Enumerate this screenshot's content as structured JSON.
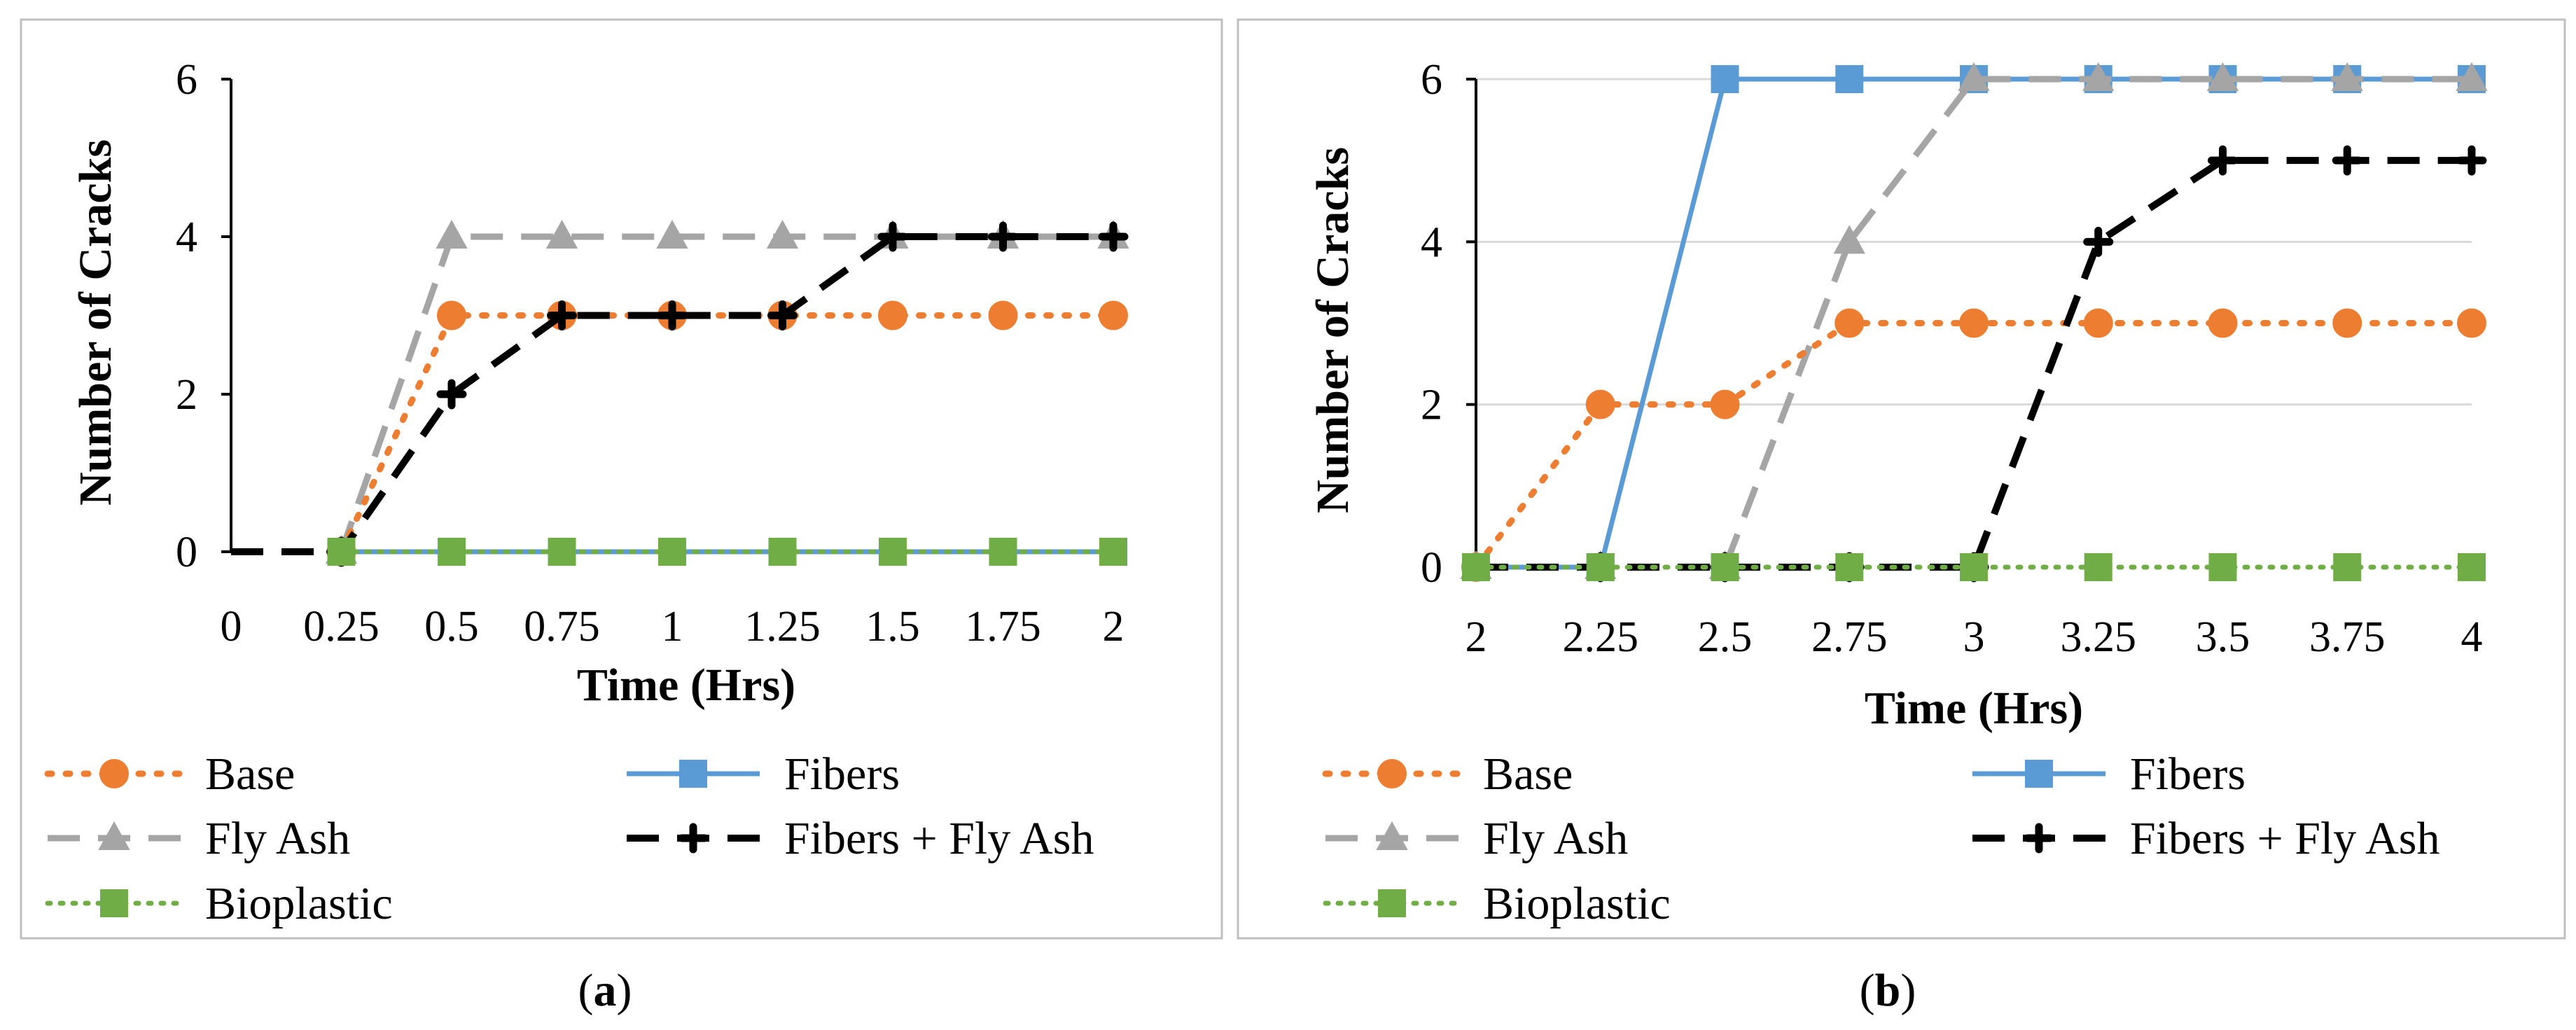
{
  "chart_data": [
    {
      "type": "line",
      "caption": "a",
      "xlabel": "Time (Hrs)",
      "ylabel": "Number of Cracks",
      "x_categories": [
        "0",
        "0.25",
        "0.5",
        "0.75",
        "1",
        "1.25",
        "1.5",
        "1.75",
        "2"
      ],
      "y_ticks": [
        "0",
        "2",
        "4",
        "6"
      ],
      "ylim": [
        0,
        6
      ],
      "y_gridlines": false,
      "y_axis_at_category": 0,
      "series": [
        {
          "name": "Fibers",
          "style": "fibers",
          "values": [
            null,
            0,
            0,
            0,
            0,
            0,
            0,
            0,
            0
          ]
        },
        {
          "name": "Fly Ash",
          "style": "flyash",
          "values": [
            null,
            0,
            4,
            4,
            4,
            4,
            4,
            4,
            4
          ]
        },
        {
          "name": "Base",
          "style": "base",
          "values": [
            null,
            0,
            3,
            3,
            3,
            3,
            3,
            3,
            3
          ]
        },
        {
          "name": "Fibers + Fly Ash",
          "style": "ffa",
          "values": [
            0,
            0,
            2,
            3,
            3,
            3,
            4,
            4,
            4
          ]
        },
        {
          "name": "Bioplastic",
          "style": "bio",
          "values": [
            null,
            0,
            0,
            0,
            0,
            0,
            0,
            0,
            0
          ]
        }
      ],
      "legend": [
        {
          "name": "Base",
          "style": "base"
        },
        {
          "name": "Fibers",
          "style": "fibers"
        },
        {
          "name": "Fly Ash",
          "style": "flyash"
        },
        {
          "name": "Fibers + Fly Ash",
          "style": "ffa"
        },
        {
          "name": "Bioplastic",
          "style": "bio"
        }
      ]
    },
    {
      "type": "line",
      "caption": "b",
      "xlabel": "Time (Hrs)",
      "ylabel": "Number of Cracks",
      "x_categories": [
        "2",
        "2.25",
        "2.5",
        "2.75",
        "3",
        "3.25",
        "3.5",
        "3.75",
        "4"
      ],
      "y_ticks": [
        "0",
        "2",
        "4",
        "6"
      ],
      "ylim": [
        0,
        6
      ],
      "y_gridlines": true,
      "y_axis_at_category": 0,
      "series": [
        {
          "name": "Fibers",
          "style": "fibers",
          "values": [
            0,
            0,
            6,
            6,
            6,
            6,
            6,
            6,
            6
          ]
        },
        {
          "name": "Fly Ash",
          "style": "flyash",
          "values": [
            0,
            0,
            0,
            4,
            6,
            6,
            6,
            6,
            6
          ]
        },
        {
          "name": "Base",
          "style": "base",
          "values": [
            0,
            2,
            2,
            3,
            3,
            3,
            3,
            3,
            3
          ]
        },
        {
          "name": "Fibers + Fly Ash",
          "style": "ffa",
          "values": [
            0,
            0,
            0,
            0,
            0,
            4,
            5,
            5,
            5
          ]
        },
        {
          "name": "Bioplastic",
          "style": "bio",
          "values": [
            0,
            0,
            0,
            0,
            0,
            0,
            0,
            0,
            0
          ]
        }
      ],
      "legend": [
        {
          "name": "Base",
          "style": "base"
        },
        {
          "name": "Fibers",
          "style": "fibers"
        },
        {
          "name": "Fly Ash",
          "style": "flyash"
        },
        {
          "name": "Fibers + Fly Ash",
          "style": "ffa"
        },
        {
          "name": "Bioplastic",
          "style": "bio"
        }
      ]
    }
  ],
  "colors": {
    "base": "#ED7D31",
    "fibers": "#5B9BD5",
    "flyash": "#A5A5A5",
    "ffa": "#000000",
    "bio": "#70AD47",
    "gridline": "#D9D9D9",
    "panel_border": "#BFBFBF"
  }
}
